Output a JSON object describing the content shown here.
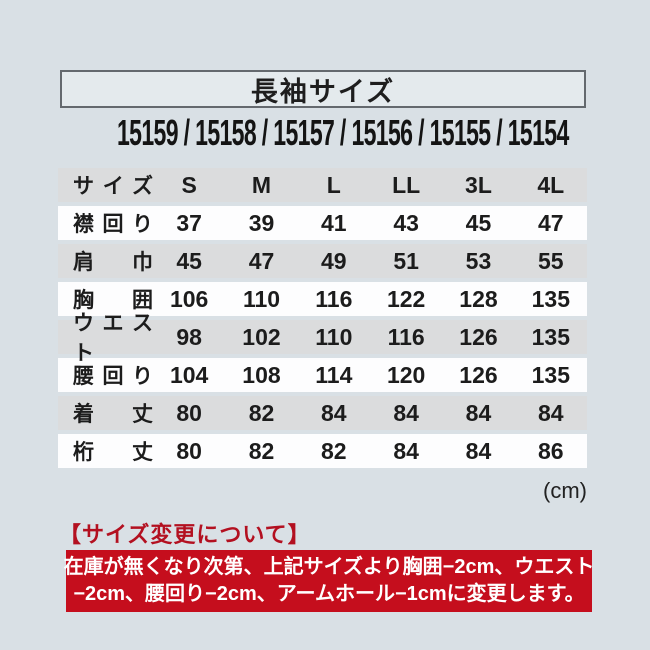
{
  "header": {
    "title": "長袖サイズ",
    "product_codes": "15159 / 15158 / 15157 / 15156 / 15155 / 15154"
  },
  "size_table": {
    "columns": [
      "サイズ",
      "S",
      "M",
      "L",
      "LL",
      "3L",
      "4L"
    ],
    "rows": [
      {
        "label": "襟回り",
        "values": [
          "37",
          "39",
          "41",
          "43",
          "45",
          "47"
        ]
      },
      {
        "label": "肩巾",
        "values": [
          "45",
          "47",
          "49",
          "51",
          "53",
          "55"
        ]
      },
      {
        "label": "胸囲",
        "values": [
          "106",
          "110",
          "116",
          "122",
          "128",
          "135"
        ]
      },
      {
        "label": "ウエスト",
        "values": [
          "98",
          "102",
          "110",
          "116",
          "126",
          "135"
        ]
      },
      {
        "label": "腰回り",
        "values": [
          "104",
          "108",
          "114",
          "120",
          "126",
          "135"
        ]
      },
      {
        "label": "着丈",
        "values": [
          "80",
          "82",
          "84",
          "84",
          "84",
          "84"
        ]
      },
      {
        "label": "桁丈",
        "values": [
          "80",
          "82",
          "82",
          "84",
          "84",
          "86"
        ]
      }
    ],
    "unit": "(cm)"
  },
  "notice": {
    "heading": "【サイズ変更について】",
    "lines": [
      "在庫が無くなり次第、上記サイズより胸囲−2cm、ウエスト",
      "−2cm、腰回り−2cm、アームホール−1cmに変更します。"
    ]
  },
  "colors": {
    "background": "#d9e0e5",
    "row_gray": "#dbdcdd",
    "row_white": "#fdfdfe",
    "notice_box_red": "#c50e1d",
    "notice_heading_red": "#b31020"
  }
}
